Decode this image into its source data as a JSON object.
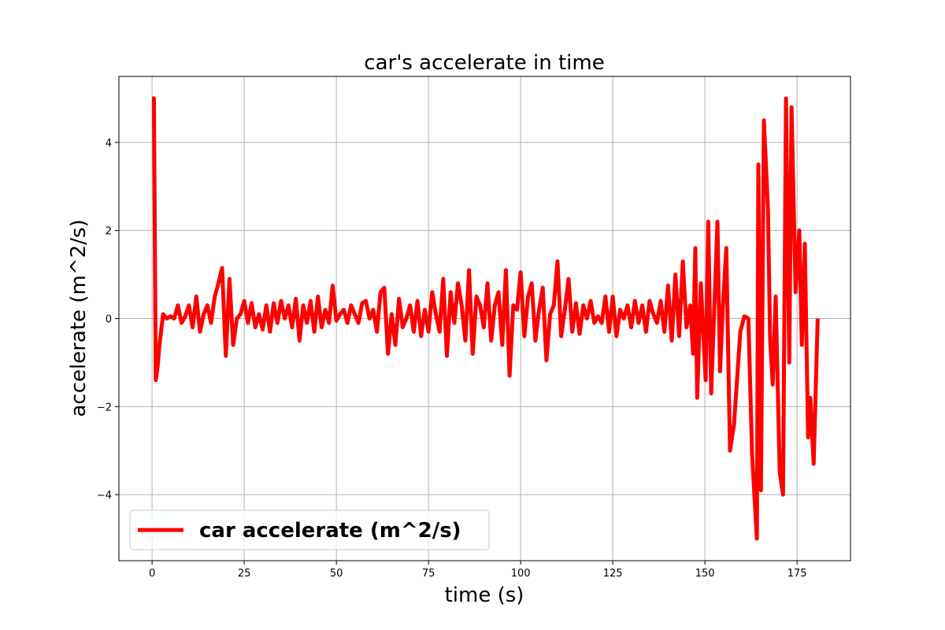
{
  "chart_data": {
    "type": "line",
    "title": "car's accelerate in time",
    "x_label": "time (s)",
    "y_label": "accelerate (m^2/s)",
    "xlim": [
      -9,
      189.5
    ],
    "ylim": [
      -5.5,
      5.5
    ],
    "xticks": [
      0,
      25,
      50,
      75,
      100,
      125,
      150,
      175
    ],
    "yticks": [
      {
        "value": -4,
        "label": "−4"
      },
      {
        "value": -2,
        "label": "−2"
      },
      0,
      2,
      4
    ],
    "grid": true,
    "legend": "lower left",
    "x": [
      0,
      0.5,
      1,
      1.5,
      2,
      3,
      4,
      5,
      6,
      7,
      8,
      9,
      10,
      11,
      12,
      13,
      14,
      15,
      16,
      17,
      18,
      19,
      20,
      21,
      22,
      23,
      24,
      25,
      26,
      27,
      28,
      29,
      30,
      31,
      32,
      33,
      34,
      35,
      36,
      37,
      38,
      39,
      40,
      41,
      42,
      43,
      44,
      45,
      46,
      47,
      48,
      49,
      50,
      51,
      52,
      53,
      54,
      55,
      56,
      57,
      58,
      59,
      60,
      61,
      62,
      63,
      64,
      65,
      66,
      67,
      68,
      69,
      70,
      71,
      72,
      73,
      74,
      75,
      76,
      77,
      78,
      79,
      80,
      81,
      82,
      83,
      84,
      85,
      86,
      87,
      88,
      89,
      90,
      91,
      92,
      93,
      94,
      95,
      96,
      97,
      98,
      99,
      100,
      101,
      102,
      103,
      104,
      105,
      106,
      107,
      108,
      109,
      110,
      111,
      112,
      113,
      114,
      115,
      116,
      117,
      118,
      119,
      120,
      121,
      122,
      123,
      124,
      125,
      126,
      127,
      128,
      129,
      130,
      131,
      132,
      133,
      134,
      135,
      136,
      137,
      138,
      139,
      140,
      141,
      142,
      143,
      144,
      145,
      146,
      146.8,
      147.4,
      147.9,
      148.9,
      150.2,
      150.9,
      151.7,
      153.4,
      154.1,
      154.9,
      155.8,
      156.8,
      157.9,
      159.6,
      160.7,
      161.8,
      162.8,
      164.1,
      164.5,
      165.2,
      166.0,
      167.1,
      167.7,
      168.4,
      169.2,
      170.3,
      171.2,
      172.0,
      172.9,
      173.5,
      174.6,
      175.6,
      176.3,
      177.1,
      178.0,
      178.6,
      179.5,
      180.6
    ],
    "series": [
      {
        "name": "car accelerate (m^2/s)",
        "color": "#ff0000",
        "values": [
          5,
          5,
          -1.4,
          -1.1,
          -0.6,
          0.1,
          0,
          0.05,
          0,
          0.3,
          -0.1,
          0.05,
          0.3,
          -0.2,
          0.5,
          -0.3,
          0.1,
          0.3,
          -0.1,
          0.5,
          0.8,
          1.15,
          -0.85,
          0.9,
          -0.6,
          0,
          0.1,
          0.4,
          -0.1,
          0.35,
          -0.2,
          0.1,
          -0.25,
          0.3,
          -0.3,
          0.35,
          -0.1,
          0.4,
          0,
          0.3,
          -0.2,
          0.45,
          -0.5,
          0.3,
          -0.1,
          0.4,
          -0.3,
          0.5,
          -0.2,
          0.2,
          -0.1,
          0.75,
          -0.05,
          0.1,
          0.2,
          -0.1,
          0.3,
          0.1,
          -0.1,
          0.35,
          0.4,
          0,
          0.2,
          -0.3,
          0.6,
          0.7,
          -0.8,
          0.1,
          -0.6,
          0.45,
          -0.2,
          0,
          0.3,
          -0.3,
          0.4,
          -0.4,
          0.2,
          -0.3,
          0.6,
          0.1,
          -0.3,
          0.9,
          -0.85,
          0.6,
          -0.1,
          0.8,
          0.3,
          -0.5,
          1.1,
          -0.8,
          0.5,
          0.3,
          -0.2,
          0.8,
          -0.5,
          0.3,
          0.6,
          -0.6,
          1.1,
          -1.3,
          0.3,
          0.2,
          1.05,
          -0.4,
          0.5,
          0.8,
          -0.5,
          0.2,
          0.7,
          -0.95,
          0.1,
          0.3,
          1.3,
          -0.4,
          0.2,
          0.9,
          -0.3,
          0.35,
          -0.35,
          0.3,
          0,
          0.4,
          -0.1,
          0.05,
          -0.1,
          0.5,
          -0.3,
          0.5,
          -0.4,
          0.2,
          0,
          0.3,
          -0.2,
          0.4,
          -0.1,
          0.3,
          -0.3,
          0.4,
          0.1,
          -0.1,
          0.4,
          -0.3,
          0.75,
          -0.5,
          1.0,
          -0.4,
          1.3,
          -0.2,
          0.3,
          -0.8,
          1.6,
          -1.8,
          0.8,
          -1.4,
          2.2,
          -1.7,
          2.2,
          -1.2,
          0.3,
          1.6,
          -3.0,
          -2.4,
          -0.3,
          0.05,
          0,
          -3.1,
          -5.0,
          3.5,
          -3.9,
          4.5,
          2.5,
          -0.5,
          -1.5,
          0.5,
          -3.5,
          -4.0,
          5.0,
          -1,
          4.8,
          0.6,
          2.0,
          -0.6,
          1.7,
          -2.7,
          -1.8,
          -3.3,
          0
        ]
      }
    ]
  }
}
